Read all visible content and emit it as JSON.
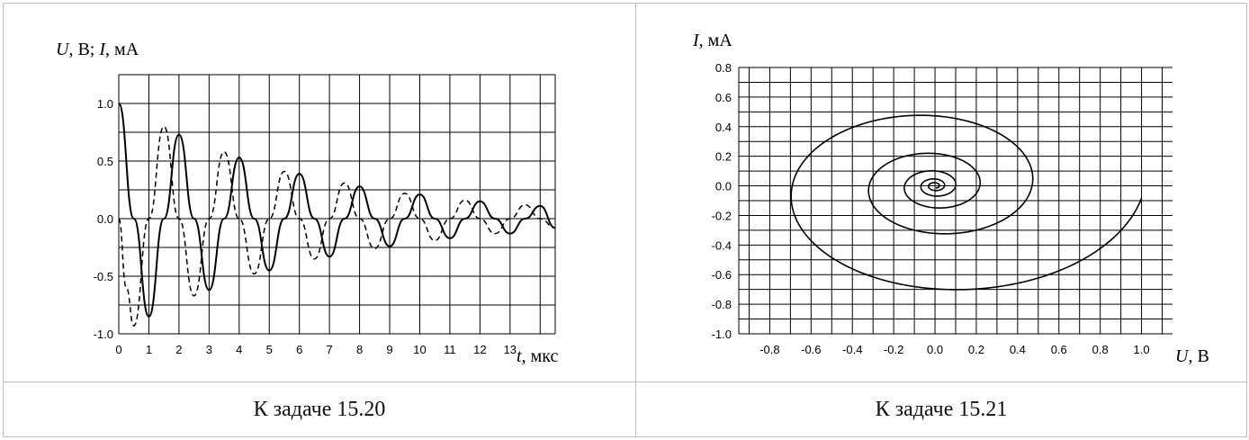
{
  "captions": [
    "К задаче 15.20",
    "К задаче 15.21"
  ],
  "chart_data": [
    {
      "type": "line",
      "ylabel": "U, В;   I, мА",
      "xlabel": "t, мкс",
      "xlim": [
        0,
        14.5
      ],
      "ylim": [
        -1.0,
        1.25
      ],
      "x_ticks": [
        "0",
        "1",
        "2",
        "3",
        "4",
        "5",
        "6",
        "7",
        "8",
        "9",
        "10",
        "11",
        "12",
        "13"
      ],
      "y_ticks": [
        "1.0",
        "0.5",
        "0.0",
        "-0.5",
        "-1.0"
      ],
      "grid": true,
      "series": [
        {
          "style": "solid",
          "x": [
            0,
            0.5,
            1.0,
            1.5,
            2.0,
            2.5,
            3.0,
            3.5,
            4.0,
            4.5,
            5.0,
            5.5,
            6.0,
            6.5,
            7.0,
            7.5,
            8.0,
            8.5,
            9.0,
            9.5,
            10.0,
            10.5,
            11.0,
            11.5,
            12.0,
            12.5,
            13.0,
            13.5,
            14.0,
            14.5
          ],
          "values": [
            1.0,
            0.0,
            -0.85,
            0.0,
            0.73,
            0.0,
            -0.62,
            0.0,
            0.53,
            0.0,
            -0.45,
            0.0,
            0.39,
            0.0,
            -0.33,
            0.0,
            0.28,
            0.0,
            -0.24,
            0.0,
            0.21,
            0.0,
            -0.17,
            0.0,
            0.15,
            0.0,
            -0.13,
            0.0,
            0.11,
            -0.08
          ]
        },
        {
          "style": "dashed",
          "x": [
            0,
            0.25,
            0.5,
            1.0,
            1.5,
            2.0,
            2.5,
            3.0,
            3.5,
            4.0,
            4.5,
            5.0,
            5.5,
            6.0,
            6.5,
            7.0,
            7.5,
            8.0,
            8.5,
            9.0,
            9.5,
            10.0,
            10.5,
            11.0,
            11.5,
            12.0,
            12.5,
            13.0,
            13.5,
            14.0,
            14.5
          ],
          "values": [
            0.0,
            -0.6,
            -0.93,
            0.0,
            0.8,
            0.0,
            -0.67,
            0.0,
            0.58,
            0.0,
            -0.48,
            0.0,
            0.41,
            0.0,
            -0.35,
            0.0,
            0.31,
            0.0,
            -0.26,
            0.0,
            0.22,
            0.0,
            -0.19,
            0.0,
            0.16,
            0.0,
            -0.13,
            0.0,
            0.12,
            0.0,
            -0.08
          ]
        }
      ]
    },
    {
      "type": "line",
      "ylabel": "I, мА",
      "xlabel": "U, В",
      "xlim": [
        -0.95,
        1.15
      ],
      "ylim": [
        -1.0,
        0.8
      ],
      "x_ticks": [
        "-0.8",
        "-0.6",
        "-0.4",
        "-0.2",
        "0.0",
        "0.2",
        "0.4",
        "0.6",
        "0.8",
        "1.0"
      ],
      "y_ticks": [
        "0.8",
        "0.6",
        "0.4",
        "0.2",
        "0.0",
        "-0.2",
        "-0.4",
        "-0.6",
        "-0.8",
        "-1.0"
      ],
      "grid": true,
      "series": [
        {
          "style": "solid",
          "spiral": {
            "start": [
              1.0,
              -0.1
            ],
            "center": [
              0.0,
              0.0
            ],
            "turns": 5.2
          }
        }
      ]
    }
  ]
}
